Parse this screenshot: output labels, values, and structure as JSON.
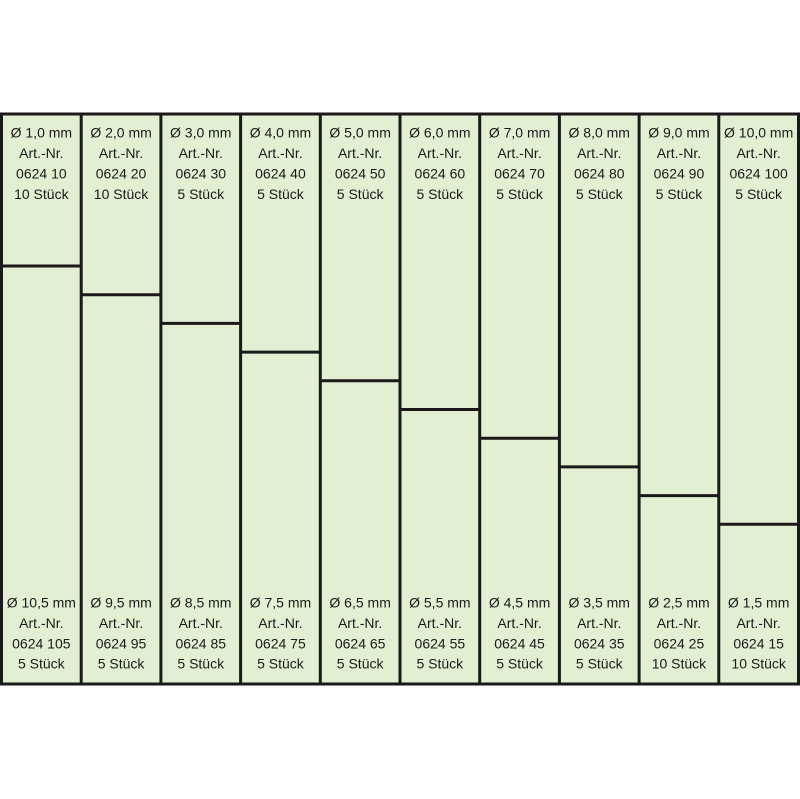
{
  "columns": [
    {
      "top": [
        "Ø 1,0 mm",
        "Art.-Nr.",
        "0624 10",
        "10 Stück"
      ],
      "bottom": [
        "Ø 10,5 mm",
        "Art.-Nr.",
        "0624 105",
        "5 Stück"
      ]
    },
    {
      "top": [
        "Ø 2,0 mm",
        "Art.-Nr.",
        "0624 20",
        "10 Stück"
      ],
      "bottom": [
        "Ø 9,5 mm",
        "Art.-Nr.",
        "0624 95",
        "5 Stück"
      ]
    },
    {
      "top": [
        "Ø 3,0 mm",
        "Art.-Nr.",
        "0624 30",
        "5 Stück"
      ],
      "bottom": [
        "Ø 8,5 mm",
        "Art.-Nr.",
        "0624 85",
        "5 Stück"
      ]
    },
    {
      "top": [
        "Ø 4,0 mm",
        "Art.-Nr.",
        "0624 40",
        "5 Stück"
      ],
      "bottom": [
        "Ø 7,5 mm",
        "Art.-Nr.",
        "0624 75",
        "5 Stück"
      ]
    },
    {
      "top": [
        "Ø 5,0 mm",
        "Art.-Nr.",
        "0624 50",
        "5 Stück"
      ],
      "bottom": [
        "Ø 6,5 mm",
        "Art.-Nr.",
        "0624 65",
        "5 Stück"
      ]
    },
    {
      "top": [
        "Ø 6,0 mm",
        "Art.-Nr.",
        "0624 60",
        "5 Stück"
      ],
      "bottom": [
        "Ø 5,5 mm",
        "Art.-Nr.",
        "0624 55",
        "5 Stück"
      ]
    },
    {
      "top": [
        "Ø 7,0 mm",
        "Art.-Nr.",
        "0624 70",
        "5 Stück"
      ],
      "bottom": [
        "Ø 4,5 mm",
        "Art.-Nr.",
        "0624 45",
        "5 Stück"
      ]
    },
    {
      "top": [
        "Ø 8,0 mm",
        "Art.-Nr.",
        "0624 80",
        "5 Stück"
      ],
      "bottom": [
        "Ø 3,5 mm",
        "Art.-Nr.",
        "0624 35",
        "5 Stück"
      ]
    },
    {
      "top": [
        "Ø 9,0 mm",
        "Art.-Nr.",
        "0624 90",
        "5 Stück"
      ],
      "bottom": [
        "Ø 2,5 mm",
        "Art.-Nr.",
        "0624 25",
        "10 Stück"
      ]
    },
    {
      "top": [
        "Ø 10,0 mm",
        "Art.-Nr.",
        "0624 100",
        "5 Stück"
      ],
      "bottom": [
        "Ø 1,5 mm",
        "Art.-Nr.",
        "0624 15",
        "10 Stück"
      ]
    }
  ]
}
